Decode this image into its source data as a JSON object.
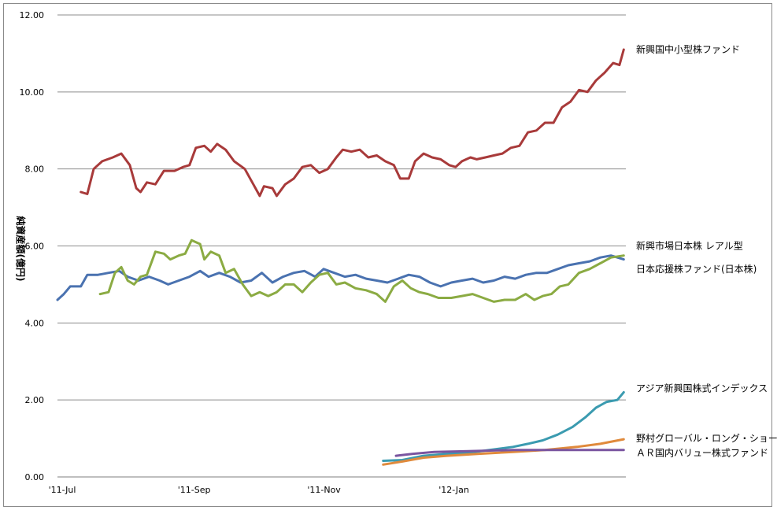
{
  "chart_data": {
    "type": "line",
    "title": "",
    "xlabel": "",
    "ylabel": "純資産額(億円)",
    "ylim": [
      0,
      12
    ],
    "yticks": [
      "0.00",
      "2.00",
      "4.00",
      "6.00",
      "8.00",
      "10.00",
      "12.00"
    ],
    "xticks": [
      {
        "label": "'11-Jul",
        "date": "2011-07-01"
      },
      {
        "label": "'11-Sep",
        "date": "2011-09-01"
      },
      {
        "label": "'11-Nov",
        "date": "2011-11-01"
      },
      {
        "label": "'12-Jan",
        "date": "2012-01-01"
      }
    ],
    "grid": "horizontal",
    "legend": "right-labels",
    "series": [
      {
        "name": "新興国中小型株ファンド",
        "color": "#a83a3a",
        "points": [
          [
            "2011-07-12",
            7.4
          ],
          [
            "2011-07-15",
            7.35
          ],
          [
            "2011-07-18",
            8.0
          ],
          [
            "2011-07-22",
            8.2
          ],
          [
            "2011-07-27",
            8.3
          ],
          [
            "2011-07-31",
            8.4
          ],
          [
            "2011-08-04",
            8.1
          ],
          [
            "2011-08-07",
            7.5
          ],
          [
            "2011-08-09",
            7.4
          ],
          [
            "2011-08-12",
            7.65
          ],
          [
            "2011-08-16",
            7.6
          ],
          [
            "2011-08-20",
            7.95
          ],
          [
            "2011-08-25",
            7.95
          ],
          [
            "2011-08-29",
            8.05
          ],
          [
            "2011-09-01",
            8.1
          ],
          [
            "2011-09-04",
            8.55
          ],
          [
            "2011-09-08",
            8.6
          ],
          [
            "2011-09-11",
            8.45
          ],
          [
            "2011-09-14",
            8.65
          ],
          [
            "2011-09-18",
            8.5
          ],
          [
            "2011-09-22",
            8.2
          ],
          [
            "2011-09-27",
            8.0
          ],
          [
            "2011-10-01",
            7.6
          ],
          [
            "2011-10-04",
            7.3
          ],
          [
            "2011-10-06",
            7.55
          ],
          [
            "2011-10-10",
            7.5
          ],
          [
            "2011-10-12",
            7.3
          ],
          [
            "2011-10-16",
            7.6
          ],
          [
            "2011-10-20",
            7.75
          ],
          [
            "2011-10-24",
            8.05
          ],
          [
            "2011-10-28",
            8.1
          ],
          [
            "2011-11-01",
            7.9
          ],
          [
            "2011-11-05",
            8.0
          ],
          [
            "2011-11-09",
            8.3
          ],
          [
            "2011-11-12",
            8.5
          ],
          [
            "2011-11-16",
            8.45
          ],
          [
            "2011-11-20",
            8.5
          ],
          [
            "2011-11-24",
            8.3
          ],
          [
            "2011-11-28",
            8.35
          ],
          [
            "2011-12-02",
            8.2
          ],
          [
            "2011-12-06",
            8.1
          ],
          [
            "2011-12-09",
            7.75
          ],
          [
            "2011-12-13",
            7.75
          ],
          [
            "2011-12-16",
            8.2
          ],
          [
            "2011-12-20",
            8.4
          ],
          [
            "2011-12-24",
            8.3
          ],
          [
            "2011-12-28",
            8.25
          ],
          [
            "2012-01-01",
            8.1
          ],
          [
            "2012-01-04",
            8.05
          ],
          [
            "2012-01-07",
            8.2
          ],
          [
            "2012-01-11",
            8.3
          ],
          [
            "2012-01-14",
            8.25
          ],
          [
            "2012-01-18",
            8.3
          ],
          [
            "2012-01-22",
            8.35
          ],
          [
            "2012-01-26",
            8.4
          ],
          [
            "2012-01-30",
            8.55
          ],
          [
            "2012-02-03",
            8.6
          ],
          [
            "2012-02-07",
            8.95
          ],
          [
            "2012-02-11",
            9.0
          ],
          [
            "2012-02-15",
            9.2
          ],
          [
            "2012-02-19",
            9.2
          ],
          [
            "2012-02-23",
            9.6
          ],
          [
            "2012-02-27",
            9.75
          ],
          [
            "2012-03-02",
            10.05
          ],
          [
            "2012-03-06",
            10.0
          ],
          [
            "2012-03-10",
            10.3
          ],
          [
            "2012-03-14",
            10.5
          ],
          [
            "2012-03-18",
            10.75
          ],
          [
            "2012-03-21",
            10.7
          ],
          [
            "2012-03-23",
            11.1
          ]
        ]
      },
      {
        "name": "新興市場日本株 レアル型",
        "color": "#4a72b0",
        "points": [
          [
            "2011-07-01",
            4.6
          ],
          [
            "2011-07-04",
            4.75
          ],
          [
            "2011-07-07",
            4.95
          ],
          [
            "2011-07-12",
            4.95
          ],
          [
            "2011-07-15",
            5.25
          ],
          [
            "2011-07-20",
            5.25
          ],
          [
            "2011-07-25",
            5.3
          ],
          [
            "2011-07-30",
            5.35
          ],
          [
            "2011-08-03",
            5.2
          ],
          [
            "2011-08-08",
            5.1
          ],
          [
            "2011-08-13",
            5.2
          ],
          [
            "2011-08-18",
            5.1
          ],
          [
            "2011-08-22",
            5.0
          ],
          [
            "2011-08-27",
            5.1
          ],
          [
            "2011-09-01",
            5.2
          ],
          [
            "2011-09-06",
            5.35
          ],
          [
            "2011-09-10",
            5.2
          ],
          [
            "2011-09-15",
            5.3
          ],
          [
            "2011-09-20",
            5.2
          ],
          [
            "2011-09-25",
            5.05
          ],
          [
            "2011-09-30",
            5.1
          ],
          [
            "2011-10-05",
            5.3
          ],
          [
            "2011-10-10",
            5.05
          ],
          [
            "2011-10-15",
            5.2
          ],
          [
            "2011-10-20",
            5.3
          ],
          [
            "2011-10-25",
            5.35
          ],
          [
            "2011-10-30",
            5.2
          ],
          [
            "2011-11-03",
            5.4
          ],
          [
            "2011-11-08",
            5.3
          ],
          [
            "2011-11-13",
            5.2
          ],
          [
            "2011-11-18",
            5.25
          ],
          [
            "2011-11-23",
            5.15
          ],
          [
            "2011-11-28",
            5.1
          ],
          [
            "2011-12-03",
            5.05
          ],
          [
            "2011-12-08",
            5.15
          ],
          [
            "2011-12-13",
            5.25
          ],
          [
            "2011-12-18",
            5.2
          ],
          [
            "2011-12-23",
            5.05
          ],
          [
            "2011-12-28",
            4.95
          ],
          [
            "2012-01-02",
            5.05
          ],
          [
            "2012-01-07",
            5.1
          ],
          [
            "2012-01-12",
            5.15
          ],
          [
            "2012-01-17",
            5.05
          ],
          [
            "2012-01-22",
            5.1
          ],
          [
            "2012-01-27",
            5.2
          ],
          [
            "2012-02-01",
            5.15
          ],
          [
            "2012-02-06",
            5.25
          ],
          [
            "2012-02-11",
            5.3
          ],
          [
            "2012-02-16",
            5.3
          ],
          [
            "2012-02-21",
            5.4
          ],
          [
            "2012-02-26",
            5.5
          ],
          [
            "2012-03-02",
            5.55
          ],
          [
            "2012-03-07",
            5.6
          ],
          [
            "2012-03-12",
            5.7
          ],
          [
            "2012-03-17",
            5.75
          ],
          [
            "2012-03-23",
            5.65
          ]
        ]
      },
      {
        "name": "日本応援株ファンド(日本株)",
        "color": "#8bab43",
        "points": [
          [
            "2011-07-21",
            4.75
          ],
          [
            "2011-07-25",
            4.8
          ],
          [
            "2011-07-28",
            5.3
          ],
          [
            "2011-07-31",
            5.45
          ],
          [
            "2011-08-03",
            5.1
          ],
          [
            "2011-08-06",
            5.0
          ],
          [
            "2011-08-09",
            5.2
          ],
          [
            "2011-08-12",
            5.25
          ],
          [
            "2011-08-16",
            5.85
          ],
          [
            "2011-08-20",
            5.8
          ],
          [
            "2011-08-23",
            5.65
          ],
          [
            "2011-08-27",
            5.75
          ],
          [
            "2011-08-30",
            5.8
          ],
          [
            "2011-09-02",
            6.15
          ],
          [
            "2011-09-06",
            6.05
          ],
          [
            "2011-09-08",
            5.65
          ],
          [
            "2011-09-11",
            5.85
          ],
          [
            "2011-09-15",
            5.75
          ],
          [
            "2011-09-18",
            5.3
          ],
          [
            "2011-09-22",
            5.4
          ],
          [
            "2011-09-26",
            5.0
          ],
          [
            "2011-09-30",
            4.7
          ],
          [
            "2011-10-04",
            4.8
          ],
          [
            "2011-10-08",
            4.7
          ],
          [
            "2011-10-12",
            4.8
          ],
          [
            "2011-10-16",
            5.0
          ],
          [
            "2011-10-20",
            5.0
          ],
          [
            "2011-10-24",
            4.8
          ],
          [
            "2011-10-28",
            5.05
          ],
          [
            "2011-11-01",
            5.25
          ],
          [
            "2011-11-05",
            5.3
          ],
          [
            "2011-11-09",
            5.0
          ],
          [
            "2011-11-13",
            5.05
          ],
          [
            "2011-11-18",
            4.9
          ],
          [
            "2011-11-23",
            4.85
          ],
          [
            "2011-11-28",
            4.75
          ],
          [
            "2011-12-02",
            4.55
          ],
          [
            "2011-12-06",
            4.95
          ],
          [
            "2011-12-10",
            5.1
          ],
          [
            "2011-12-14",
            4.9
          ],
          [
            "2011-12-18",
            4.8
          ],
          [
            "2011-12-22",
            4.75
          ],
          [
            "2011-12-27",
            4.65
          ],
          [
            "2012-01-02",
            4.65
          ],
          [
            "2012-01-07",
            4.7
          ],
          [
            "2012-01-12",
            4.75
          ],
          [
            "2012-01-17",
            4.65
          ],
          [
            "2012-01-22",
            4.55
          ],
          [
            "2012-01-27",
            4.6
          ],
          [
            "2012-02-01",
            4.6
          ],
          [
            "2012-02-06",
            4.75
          ],
          [
            "2012-02-10",
            4.6
          ],
          [
            "2012-02-14",
            4.7
          ],
          [
            "2012-02-18",
            4.75
          ],
          [
            "2012-02-22",
            4.95
          ],
          [
            "2012-02-26",
            5.0
          ],
          [
            "2012-03-02",
            5.3
          ],
          [
            "2012-03-07",
            5.4
          ],
          [
            "2012-03-12",
            5.55
          ],
          [
            "2012-03-17",
            5.7
          ],
          [
            "2012-03-23",
            5.75
          ]
        ]
      },
      {
        "name": "アジア新興国株式インデックス",
        "color": "#3b9bb0",
        "points": [
          [
            "2011-12-01",
            0.42
          ],
          [
            "2011-12-10",
            0.44
          ],
          [
            "2011-12-20",
            0.55
          ],
          [
            "2011-12-31",
            0.6
          ],
          [
            "2012-01-10",
            0.63
          ],
          [
            "2012-01-20",
            0.7
          ],
          [
            "2012-01-31",
            0.78
          ],
          [
            "2012-02-07",
            0.86
          ],
          [
            "2012-02-14",
            0.95
          ],
          [
            "2012-02-21",
            1.1
          ],
          [
            "2012-02-28",
            1.3
          ],
          [
            "2012-03-05",
            1.55
          ],
          [
            "2012-03-10",
            1.8
          ],
          [
            "2012-03-15",
            1.95
          ],
          [
            "2012-03-20",
            2.0
          ],
          [
            "2012-03-23",
            2.2
          ]
        ]
      },
      {
        "name": "野村グローバル・ロング・ショート",
        "color": "#e08a3c",
        "points": [
          [
            "2011-12-01",
            0.32
          ],
          [
            "2011-12-10",
            0.4
          ],
          [
            "2011-12-20",
            0.5
          ],
          [
            "2011-12-31",
            0.55
          ],
          [
            "2012-01-15",
            0.6
          ],
          [
            "2012-01-31",
            0.65
          ],
          [
            "2012-02-15",
            0.7
          ],
          [
            "2012-03-01",
            0.78
          ],
          [
            "2012-03-12",
            0.86
          ],
          [
            "2012-03-23",
            0.98
          ]
        ]
      },
      {
        "name": "ＡＲ国内バリュー株式ファンド",
        "color": "#7a55a0",
        "points": [
          [
            "2011-12-07",
            0.55
          ],
          [
            "2011-12-15",
            0.6
          ],
          [
            "2011-12-25",
            0.65
          ],
          [
            "2012-01-10",
            0.67
          ],
          [
            "2012-01-31",
            0.7
          ],
          [
            "2012-02-20",
            0.7
          ],
          [
            "2012-03-10",
            0.7
          ],
          [
            "2012-03-23",
            0.7
          ]
        ]
      }
    ],
    "series_label_values": [
      11.1,
      6.0,
      5.4,
      2.3,
      1.0,
      0.62
    ]
  }
}
